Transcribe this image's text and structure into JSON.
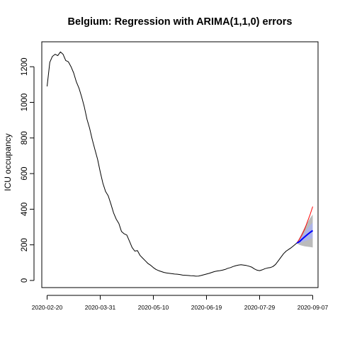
{
  "chart_data": {
    "type": "line",
    "title": "Belgium: Regression with ARIMA(1,1,0) errors",
    "xlabel": "",
    "ylabel": "ICU occupancy",
    "x_tick_labels": [
      "2020-02-20",
      "2020-03-31",
      "2020-05-10",
      "2020-06-19",
      "2020-07-29",
      "2020-09-07"
    ],
    "y_ticks": [
      0,
      200,
      400,
      600,
      800,
      1000,
      1200
    ],
    "xlim": [
      "2020-02-16",
      "2020-09-11"
    ],
    "ylim": [
      -40,
      1340
    ],
    "grid": false,
    "legend": "none",
    "series": [
      {
        "color": "#000000",
        "points": [
          [
            "2020-02-20",
            1090
          ],
          [
            "2020-02-22",
            1225
          ],
          [
            "2020-02-24",
            1258
          ],
          [
            "2020-02-26",
            1270
          ],
          [
            "2020-02-28",
            1262
          ],
          [
            "2020-03-01",
            1283
          ],
          [
            "2020-03-03",
            1270
          ],
          [
            "2020-03-05",
            1235
          ],
          [
            "2020-03-07",
            1228
          ],
          [
            "2020-03-09",
            1200
          ],
          [
            "2020-03-11",
            1165
          ],
          [
            "2020-03-13",
            1115
          ],
          [
            "2020-03-15",
            1080
          ],
          [
            "2020-03-17",
            1030
          ],
          [
            "2020-03-19",
            975
          ],
          [
            "2020-03-21",
            905
          ],
          [
            "2020-03-23",
            855
          ],
          [
            "2020-03-25",
            790
          ],
          [
            "2020-03-27",
            735
          ],
          [
            "2020-03-29",
            680
          ],
          [
            "2020-03-31",
            610
          ],
          [
            "2020-04-02",
            545
          ],
          [
            "2020-04-04",
            500
          ],
          [
            "2020-04-06",
            475
          ],
          [
            "2020-04-08",
            430
          ],
          [
            "2020-04-10",
            380
          ],
          [
            "2020-04-12",
            345
          ],
          [
            "2020-04-14",
            320
          ],
          [
            "2020-04-16",
            275
          ],
          [
            "2020-04-18",
            262
          ],
          [
            "2020-04-20",
            255
          ],
          [
            "2020-04-22",
            220
          ],
          [
            "2020-04-24",
            185
          ],
          [
            "2020-04-26",
            165
          ],
          [
            "2020-04-28",
            168
          ],
          [
            "2020-04-30",
            140
          ],
          [
            "2020-05-02",
            125
          ],
          [
            "2020-05-04",
            110
          ],
          [
            "2020-05-06",
            95
          ],
          [
            "2020-05-08",
            85
          ],
          [
            "2020-05-10",
            72
          ],
          [
            "2020-05-12",
            62
          ],
          [
            "2020-05-14",
            55
          ],
          [
            "2020-05-16",
            50
          ],
          [
            "2020-05-18",
            45
          ],
          [
            "2020-05-20",
            42
          ],
          [
            "2020-05-22",
            40
          ],
          [
            "2020-05-24",
            38
          ],
          [
            "2020-05-26",
            36
          ],
          [
            "2020-05-28",
            35
          ],
          [
            "2020-05-30",
            33
          ],
          [
            "2020-06-01",
            30
          ],
          [
            "2020-06-03",
            29
          ],
          [
            "2020-06-05",
            28
          ],
          [
            "2020-06-07",
            27
          ],
          [
            "2020-06-09",
            26
          ],
          [
            "2020-06-11",
            24
          ],
          [
            "2020-06-13",
            25
          ],
          [
            "2020-06-15",
            28
          ],
          [
            "2020-06-17",
            32
          ],
          [
            "2020-06-19",
            36
          ],
          [
            "2020-06-21",
            40
          ],
          [
            "2020-06-23",
            45
          ],
          [
            "2020-06-25",
            50
          ],
          [
            "2020-06-27",
            53
          ],
          [
            "2020-06-29",
            55
          ],
          [
            "2020-07-01",
            58
          ],
          [
            "2020-07-03",
            62
          ],
          [
            "2020-07-05",
            68
          ],
          [
            "2020-07-07",
            72
          ],
          [
            "2020-07-09",
            78
          ],
          [
            "2020-07-11",
            83
          ],
          [
            "2020-07-13",
            86
          ],
          [
            "2020-07-15",
            88
          ],
          [
            "2020-07-17",
            86
          ],
          [
            "2020-07-19",
            84
          ],
          [
            "2020-07-21",
            80
          ],
          [
            "2020-07-23",
            75
          ],
          [
            "2020-07-25",
            65
          ],
          [
            "2020-07-27",
            58
          ],
          [
            "2020-07-29",
            55
          ],
          [
            "2020-07-31",
            60
          ],
          [
            "2020-08-02",
            66
          ],
          [
            "2020-08-04",
            70
          ],
          [
            "2020-08-06",
            72
          ],
          [
            "2020-08-08",
            78
          ],
          [
            "2020-08-10",
            90
          ],
          [
            "2020-08-12",
            110
          ],
          [
            "2020-08-14",
            130
          ],
          [
            "2020-08-16",
            150
          ],
          [
            "2020-08-18",
            165
          ],
          [
            "2020-08-20",
            175
          ],
          [
            "2020-08-22",
            185
          ],
          [
            "2020-08-24",
            198
          ],
          [
            "2020-08-26",
            210
          ]
        ]
      },
      {
        "color": "#ff0000",
        "points": [
          [
            "2020-08-26",
            210
          ],
          [
            "2020-08-28",
            232
          ],
          [
            "2020-08-30",
            258
          ],
          [
            "2020-09-01",
            290
          ],
          [
            "2020-09-03",
            330
          ],
          [
            "2020-09-05",
            370
          ],
          [
            "2020-09-07",
            415
          ]
        ]
      },
      {
        "color": "#0000ff",
        "points": [
          [
            "2020-08-26",
            210
          ],
          [
            "2020-08-28",
            218
          ],
          [
            "2020-08-30",
            232
          ],
          [
            "2020-09-01",
            245
          ],
          [
            "2020-09-03",
            258
          ],
          [
            "2020-09-05",
            270
          ],
          [
            "2020-09-07",
            280
          ]
        ]
      }
    ],
    "intervals": [
      {
        "color": "#bbbbbb",
        "x": [
          "2020-08-26",
          "2020-08-28",
          "2020-08-30",
          "2020-09-01",
          "2020-09-03",
          "2020-09-05",
          "2020-09-07"
        ],
        "lower": [
          210,
          200,
          195,
          192,
          190,
          188,
          185
        ],
        "upper": [
          210,
          240,
          270,
          300,
          325,
          350,
          370
        ]
      },
      {
        "color": "#aeb4e8",
        "x": [
          "2020-08-26",
          "2020-08-28",
          "2020-08-30",
          "2020-09-01",
          "2020-09-03",
          "2020-09-05",
          "2020-09-07"
        ],
        "lower": [
          210,
          208,
          215,
          220,
          225,
          232,
          238
        ],
        "upper": [
          210,
          228,
          250,
          270,
          290,
          310,
          325
        ]
      }
    ]
  }
}
